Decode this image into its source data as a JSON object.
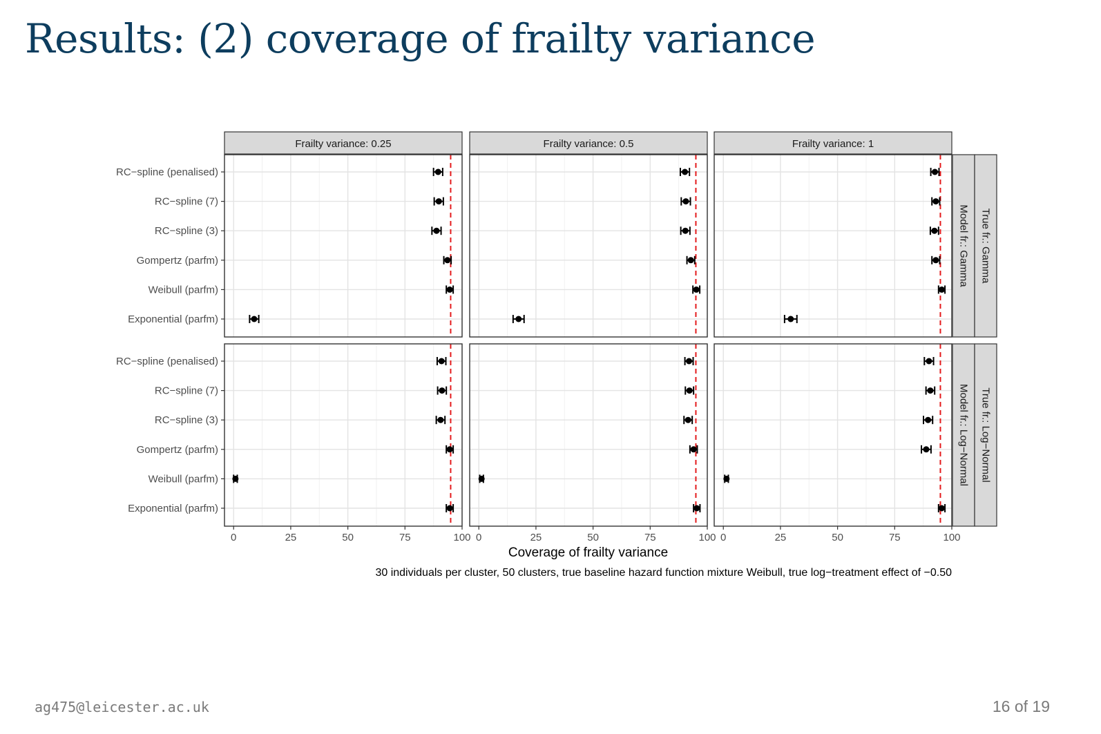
{
  "slide": {
    "title": "Results: (2) coverage of frailty variance",
    "footer_email": "ag475@leicester.ac.uk",
    "page_number": "16 of 19"
  },
  "chart_data": {
    "type": "errorbar",
    "xlabel": "Coverage of frailty variance",
    "caption": "30 individuals per cluster, 50 clusters, true baseline hazard function mixture Weibull, true log−treatment effect of −0.50",
    "xlim": [
      -4,
      100
    ],
    "xticks": [
      0,
      25,
      50,
      75,
      100
    ],
    "reference_line": 95,
    "reference_color": "#e41a1c",
    "grid": true,
    "column_facets": [
      "Frailty variance: 0.25",
      "Frailty variance: 0.5",
      "Frailty variance: 1"
    ],
    "row_facets": [
      {
        "model": "Model fr.: Gamma",
        "true": "True fr.: Gamma"
      },
      {
        "model": "Model fr.: Log−Normal",
        "true": "True fr.: Log−Normal"
      }
    ],
    "categories": [
      "RC−spline (penalised)",
      "RC−spline (7)",
      "RC−spline (3)",
      "Gompertz (parfm)",
      "Weibull (parfm)",
      "Exponential (parfm)"
    ],
    "panels": [
      {
        "row": 0,
        "col": 0,
        "points": [
          {
            "est": 89.5,
            "lo": 87.5,
            "hi": 91.5
          },
          {
            "est": 89.8,
            "lo": 87.8,
            "hi": 91.8
          },
          {
            "est": 88.8,
            "lo": 86.8,
            "hi": 90.8
          },
          {
            "est": 93.6,
            "lo": 92.0,
            "hi": 95.2
          },
          {
            "est": 94.6,
            "lo": 93.1,
            "hi": 96.1
          },
          {
            "est": 9.0,
            "lo": 7.0,
            "hi": 11.0
          }
        ]
      },
      {
        "row": 0,
        "col": 1,
        "points": [
          {
            "est": 90.2,
            "lo": 88.2,
            "hi": 92.2
          },
          {
            "est": 90.6,
            "lo": 88.6,
            "hi": 92.6
          },
          {
            "est": 90.4,
            "lo": 88.4,
            "hi": 92.4
          },
          {
            "est": 92.8,
            "lo": 91.1,
            "hi": 94.5
          },
          {
            "est": 95.2,
            "lo": 93.7,
            "hi": 96.7
          },
          {
            "est": 17.4,
            "lo": 15.0,
            "hi": 19.8
          }
        ]
      },
      {
        "row": 0,
        "col": 2,
        "points": [
          {
            "est": 92.6,
            "lo": 90.8,
            "hi": 94.4
          },
          {
            "est": 93.0,
            "lo": 91.3,
            "hi": 94.7
          },
          {
            "est": 92.4,
            "lo": 90.6,
            "hi": 94.2
          },
          {
            "est": 93.0,
            "lo": 91.3,
            "hi": 94.7
          },
          {
            "est": 95.6,
            "lo": 94.2,
            "hi": 97.0
          },
          {
            "est": 29.5,
            "lo": 26.8,
            "hi": 32.2
          }
        ]
      },
      {
        "row": 1,
        "col": 0,
        "points": [
          {
            "est": 91.0,
            "lo": 89.1,
            "hi": 92.9
          },
          {
            "est": 91.2,
            "lo": 89.3,
            "hi": 93.1
          },
          {
            "est": 90.6,
            "lo": 88.7,
            "hi": 92.5
          },
          {
            "est": 94.6,
            "lo": 93.1,
            "hi": 96.1
          },
          {
            "est": 0.8,
            "lo": 0.0,
            "hi": 1.6
          },
          {
            "est": 94.6,
            "lo": 93.1,
            "hi": 96.1
          }
        ]
      },
      {
        "row": 1,
        "col": 1,
        "points": [
          {
            "est": 92.0,
            "lo": 90.2,
            "hi": 93.8
          },
          {
            "est": 92.2,
            "lo": 90.4,
            "hi": 94.0
          },
          {
            "est": 91.6,
            "lo": 89.8,
            "hi": 93.4
          },
          {
            "est": 94.0,
            "lo": 92.4,
            "hi": 95.6
          },
          {
            "est": 1.2,
            "lo": 0.4,
            "hi": 2.0
          },
          {
            "est": 95.4,
            "lo": 94.0,
            "hi": 96.8
          }
        ]
      },
      {
        "row": 1,
        "col": 2,
        "points": [
          {
            "est": 90.0,
            "lo": 88.0,
            "hi": 92.0
          },
          {
            "est": 90.6,
            "lo": 88.7,
            "hi": 92.5
          },
          {
            "est": 89.6,
            "lo": 87.6,
            "hi": 91.6
          },
          {
            "est": 88.8,
            "lo": 86.7,
            "hi": 90.9
          },
          {
            "est": 1.4,
            "lo": 0.6,
            "hi": 2.2
          },
          {
            "est": 95.6,
            "lo": 94.2,
            "hi": 97.0
          }
        ]
      }
    ]
  }
}
